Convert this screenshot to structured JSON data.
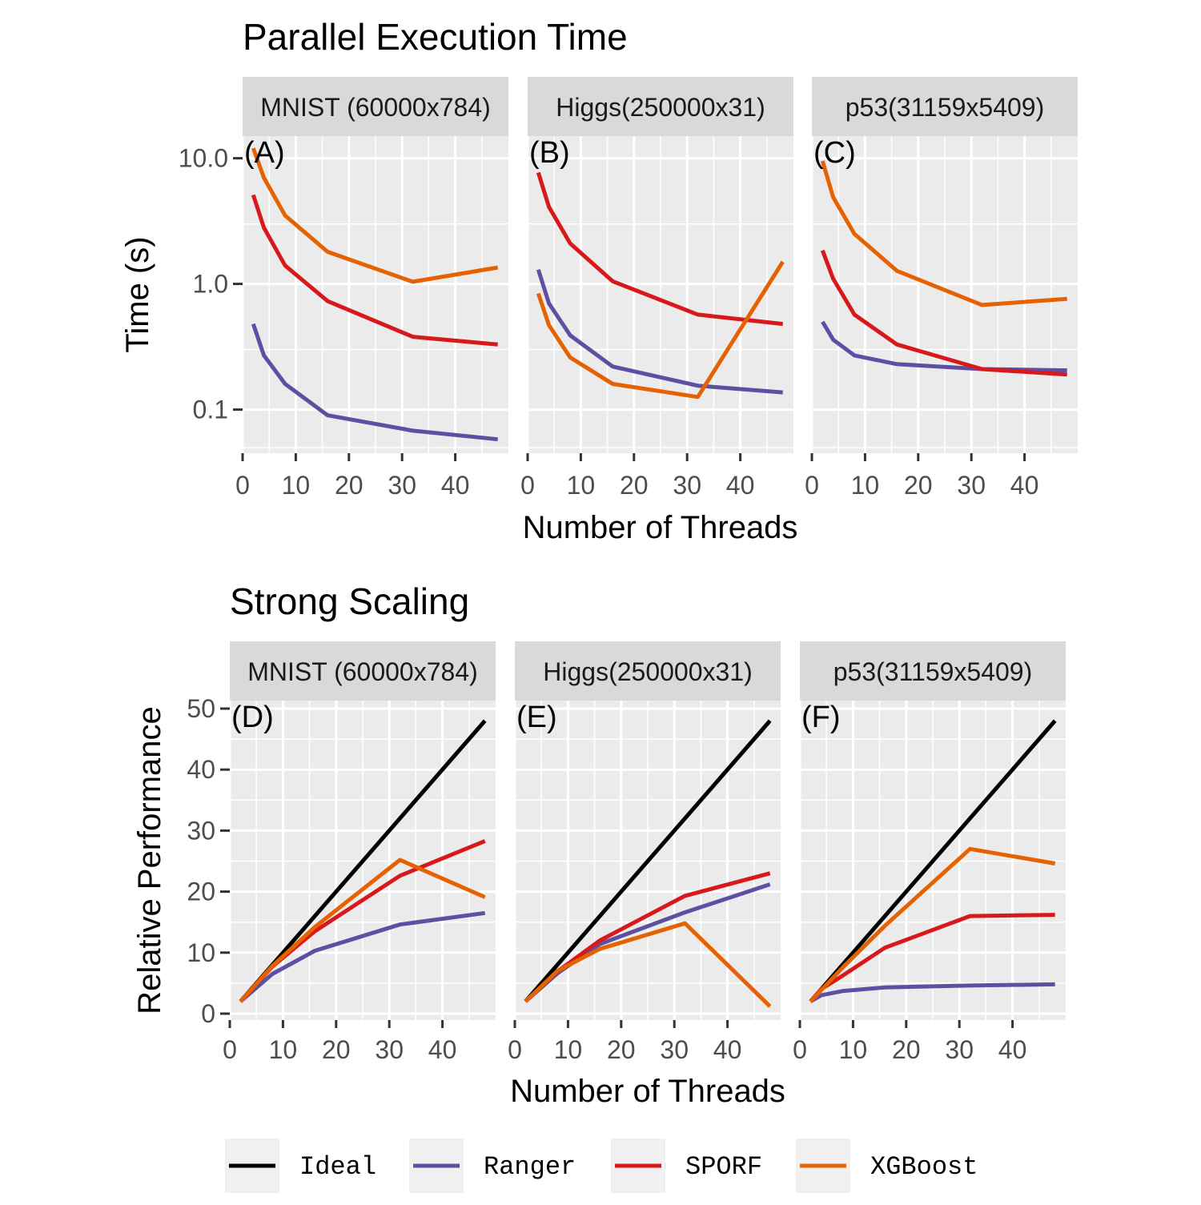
{
  "colors": {
    "Ideal": "#000000",
    "Ranger": "#5e4fa2",
    "SPORF": "#d7191c",
    "XGBoost": "#e66101",
    "panel_bg": "#ebebeb",
    "strip_bg": "#d9d9d9",
    "grid": "#ffffff"
  },
  "legend": {
    "position": "bottom",
    "items": [
      "Ideal",
      "Ranger",
      "SPORF",
      "XGBoost"
    ]
  },
  "chart_data": [
    {
      "type": "line",
      "title": "Parallel Execution Time",
      "xlabel": "Number of Threads",
      "ylabel": "Time (s)",
      "yscale": "log10",
      "ylim": [
        0.045,
        15
      ],
      "xlim": [
        0,
        50
      ],
      "yticks": [
        {
          "v": 0.1,
          "label": "0.1"
        },
        {
          "v": 1,
          "label": "1.0"
        },
        {
          "v": 10,
          "label": "10.0"
        }
      ],
      "xticks": [
        {
          "v": 0,
          "label": "0"
        },
        {
          "v": 10,
          "label": "10"
        },
        {
          "v": 20,
          "label": "20"
        },
        {
          "v": 30,
          "label": "30"
        },
        {
          "v": 40,
          "label": "40"
        }
      ],
      "grid": true,
      "panels": [
        {
          "strip": "MNIST (60000x784)",
          "tag": "(A)",
          "series": [
            {
              "name": "Ranger",
              "x": [
                2,
                4,
                8,
                16,
                32,
                48
              ],
              "y": [
                0.48,
                0.27,
                0.16,
                0.09,
                0.068,
                0.058
              ]
            },
            {
              "name": "SPORF",
              "x": [
                2,
                4,
                8,
                16,
                32,
                48
              ],
              "y": [
                5.1,
                2.8,
                1.4,
                0.73,
                0.38,
                0.33
              ]
            },
            {
              "name": "XGBoost",
              "x": [
                2,
                4,
                8,
                16,
                32,
                48
              ],
              "y": [
                12.0,
                7.0,
                3.5,
                1.8,
                1.04,
                1.35
              ]
            }
          ]
        },
        {
          "strip": "Higgs(250000x31)",
          "tag": "(B)",
          "series": [
            {
              "name": "Ranger",
              "x": [
                2,
                4,
                8,
                16,
                32,
                48
              ],
              "y": [
                1.3,
                0.7,
                0.39,
                0.22,
                0.155,
                0.137
              ]
            },
            {
              "name": "SPORF",
              "x": [
                2,
                4,
                8,
                16,
                32,
                48
              ],
              "y": [
                7.7,
                4.1,
                2.1,
                1.05,
                0.57,
                0.48
              ]
            },
            {
              "name": "XGBoost",
              "x": [
                2,
                4,
                8,
                16,
                32,
                48
              ],
              "y": [
                0.84,
                0.47,
                0.26,
                0.16,
                0.126,
                1.5
              ]
            }
          ]
        },
        {
          "strip": "p53(31159x5409)",
          "tag": "(C)",
          "series": [
            {
              "name": "Ranger",
              "x": [
                2,
                4,
                8,
                16,
                32,
                48
              ],
              "y": [
                0.5,
                0.36,
                0.27,
                0.23,
                0.21,
                0.205
              ]
            },
            {
              "name": "SPORF",
              "x": [
                2,
                4,
                8,
                16,
                32,
                48
              ],
              "y": [
                1.85,
                1.1,
                0.57,
                0.33,
                0.21,
                0.19
              ]
            },
            {
              "name": "XGBoost",
              "x": [
                2,
                4,
                8,
                16,
                32,
                48
              ],
              "y": [
                9.5,
                4.9,
                2.5,
                1.27,
                0.68,
                0.76
              ]
            }
          ]
        }
      ]
    },
    {
      "type": "line",
      "title": "Strong Scaling",
      "xlabel": "Number of Threads",
      "ylabel": "Relative Performance",
      "yscale": "linear",
      "ylim": [
        0,
        50
      ],
      "xlim": [
        0,
        50
      ],
      "yticks": [
        {
          "v": 0,
          "label": "0"
        },
        {
          "v": 10,
          "label": "10"
        },
        {
          "v": 20,
          "label": "20"
        },
        {
          "v": 30,
          "label": "30"
        },
        {
          "v": 40,
          "label": "40"
        },
        {
          "v": 50,
          "label": "50"
        }
      ],
      "xticks": [
        {
          "v": 0,
          "label": "0"
        },
        {
          "v": 10,
          "label": "10"
        },
        {
          "v": 20,
          "label": "20"
        },
        {
          "v": 30,
          "label": "30"
        },
        {
          "v": 40,
          "label": "40"
        }
      ],
      "grid": true,
      "panels": [
        {
          "strip": "MNIST (60000x784)",
          "tag": "(D)",
          "series": [
            {
              "name": "Ideal",
              "x": [
                2,
                48
              ],
              "y": [
                2,
                48
              ]
            },
            {
              "name": "Ranger",
              "x": [
                2,
                8,
                16,
                32,
                48
              ],
              "y": [
                2,
                6.5,
                10.3,
                14.6,
                16.5
              ]
            },
            {
              "name": "SPORF",
              "x": [
                2,
                8,
                16,
                32,
                48
              ],
              "y": [
                2,
                7.7,
                13.5,
                22.6,
                28.3
              ]
            },
            {
              "name": "XGBoost",
              "x": [
                2,
                8,
                16,
                32,
                48
              ],
              "y": [
                2,
                7.8,
                14.2,
                25.2,
                19.1
              ]
            }
          ]
        },
        {
          "strip": "Higgs(250000x31)",
          "tag": "(E)",
          "series": [
            {
              "name": "Ideal",
              "x": [
                2,
                48
              ],
              "y": [
                2,
                48
              ]
            },
            {
              "name": "Ranger",
              "x": [
                2,
                8,
                16,
                32,
                48
              ],
              "y": [
                2,
                6.6,
                11.4,
                16.6,
                21.2
              ]
            },
            {
              "name": "SPORF",
              "x": [
                2,
                8,
                16,
                32,
                48
              ],
              "y": [
                2,
                6.9,
                12.0,
                19.3,
                23.0
              ]
            },
            {
              "name": "XGBoost",
              "x": [
                2,
                8,
                16,
                32,
                48
              ],
              "y": [
                2,
                7.0,
                10.6,
                14.8,
                1.2
              ]
            }
          ]
        },
        {
          "strip": "p53(31159x5409)",
          "tag": "(F)",
          "series": [
            {
              "name": "Ideal",
              "x": [
                2,
                48
              ],
              "y": [
                2,
                48
              ]
            },
            {
              "name": "Ranger",
              "x": [
                2,
                4,
                8,
                16,
                32,
                48
              ],
              "y": [
                2,
                3.0,
                3.7,
                4.3,
                4.6,
                4.8
              ]
            },
            {
              "name": "SPORF",
              "x": [
                2,
                4,
                8,
                16,
                32,
                48
              ],
              "y": [
                2,
                4.0,
                6.2,
                10.8,
                16.0,
                16.2
              ]
            },
            {
              "name": "XGBoost",
              "x": [
                2,
                8,
                16,
                32,
                48
              ],
              "y": [
                2,
                7.5,
                14.4,
                27.0,
                24.6
              ]
            }
          ]
        }
      ]
    }
  ]
}
